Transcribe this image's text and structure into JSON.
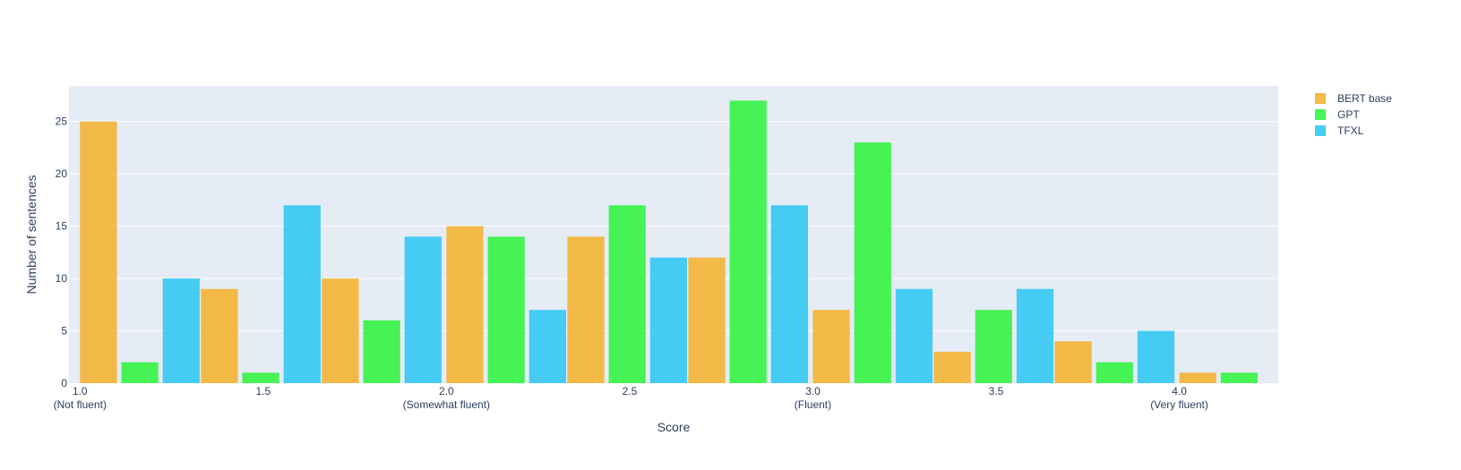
{
  "chart_data": {
    "type": "bar",
    "title": "",
    "xlabel": "Score",
    "ylabel": "Number of sentences",
    "x_ticks": [
      {
        "value": 1.0,
        "label": "1.0",
        "sub": "(Not fluent)"
      },
      {
        "value": 1.5,
        "label": "1.5",
        "sub": ""
      },
      {
        "value": 2.0,
        "label": "2.0",
        "sub": "(Somewhat fluent)"
      },
      {
        "value": 2.5,
        "label": "2.5",
        "sub": ""
      },
      {
        "value": 3.0,
        "label": "3.0",
        "sub": "(Fluent)"
      },
      {
        "value": 3.5,
        "label": "3.5",
        "sub": ""
      },
      {
        "value": 4.0,
        "label": "4.0",
        "sub": "(Very fluent)"
      }
    ],
    "xlim": [
      0.97,
      4.27
    ],
    "bin_starts": [
      1.0,
      1.33,
      1.66,
      2.0,
      2.33,
      2.66,
      3.0,
      3.33,
      3.66,
      4.0
    ],
    "bin_width": 0.33,
    "y_ticks": [
      0,
      5,
      10,
      15,
      20,
      25
    ],
    "ylim": [
      0,
      28.4
    ],
    "grid": true,
    "legend_position": "top-right",
    "series": [
      {
        "name": "BERT base",
        "color": "#f4b434",
        "values": [
          25,
          9,
          10,
          15,
          14,
          12,
          7,
          3,
          4,
          1
        ]
      },
      {
        "name": "GPT",
        "color": "#34f444",
        "values": [
          2,
          1,
          6,
          14,
          17,
          27,
          23,
          7,
          2,
          1
        ]
      },
      {
        "name": "TFXL",
        "color": "#34c8f4",
        "values": [
          10,
          17,
          14,
          7,
          12,
          17,
          9,
          9,
          5,
          0
        ]
      }
    ]
  }
}
